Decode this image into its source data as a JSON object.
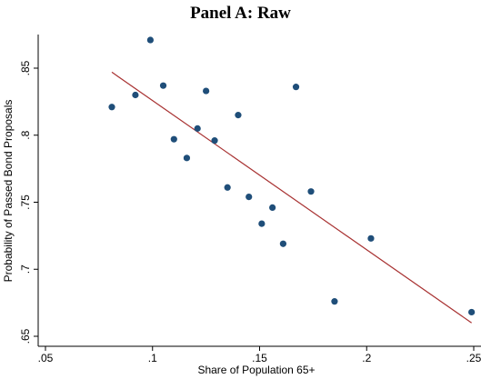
{
  "chart_data": {
    "type": "scatter",
    "title": "Panel A: Raw",
    "xlabel": "Share of Population 65+",
    "ylabel": "Probability of Passed Bond Proposals",
    "xlim": [
      0.05,
      0.25
    ],
    "ylim": [
      0.65,
      0.88
    ],
    "xticks": [
      {
        "value": 0.05,
        "label": ".05"
      },
      {
        "value": 0.1,
        "label": ".1"
      },
      {
        "value": 0.15,
        "label": ".15"
      },
      {
        "value": 0.2,
        "label": ".2"
      },
      {
        "value": 0.25,
        "label": ".25"
      }
    ],
    "yticks": [
      {
        "value": 0.65,
        "label": ".65"
      },
      {
        "value": 0.7,
        "label": ".7"
      },
      {
        "value": 0.75,
        "label": ".75"
      },
      {
        "value": 0.8,
        "label": ".8"
      },
      {
        "value": 0.85,
        "label": ".85"
      }
    ],
    "points": [
      {
        "x": 0.081,
        "y": 0.821
      },
      {
        "x": 0.092,
        "y": 0.83
      },
      {
        "x": 0.099,
        "y": 0.871
      },
      {
        "x": 0.105,
        "y": 0.837
      },
      {
        "x": 0.11,
        "y": 0.797
      },
      {
        "x": 0.116,
        "y": 0.783
      },
      {
        "x": 0.121,
        "y": 0.805
      },
      {
        "x": 0.125,
        "y": 0.833
      },
      {
        "x": 0.129,
        "y": 0.796
      },
      {
        "x": 0.135,
        "y": 0.761
      },
      {
        "x": 0.14,
        "y": 0.815
      },
      {
        "x": 0.145,
        "y": 0.754
      },
      {
        "x": 0.151,
        "y": 0.734
      },
      {
        "x": 0.156,
        "y": 0.746
      },
      {
        "x": 0.161,
        "y": 0.719
      },
      {
        "x": 0.167,
        "y": 0.836
      },
      {
        "x": 0.174,
        "y": 0.758
      },
      {
        "x": 0.185,
        "y": 0.676
      },
      {
        "x": 0.202,
        "y": 0.723
      },
      {
        "x": 0.249,
        "y": 0.668
      }
    ],
    "fit_line": {
      "x": [
        0.081,
        0.249
      ],
      "y": [
        0.847,
        0.66
      ]
    },
    "colors": {
      "points": "#1f4e79",
      "fit_line": "#a83232",
      "axis": "#000000"
    },
    "grid": false
  }
}
